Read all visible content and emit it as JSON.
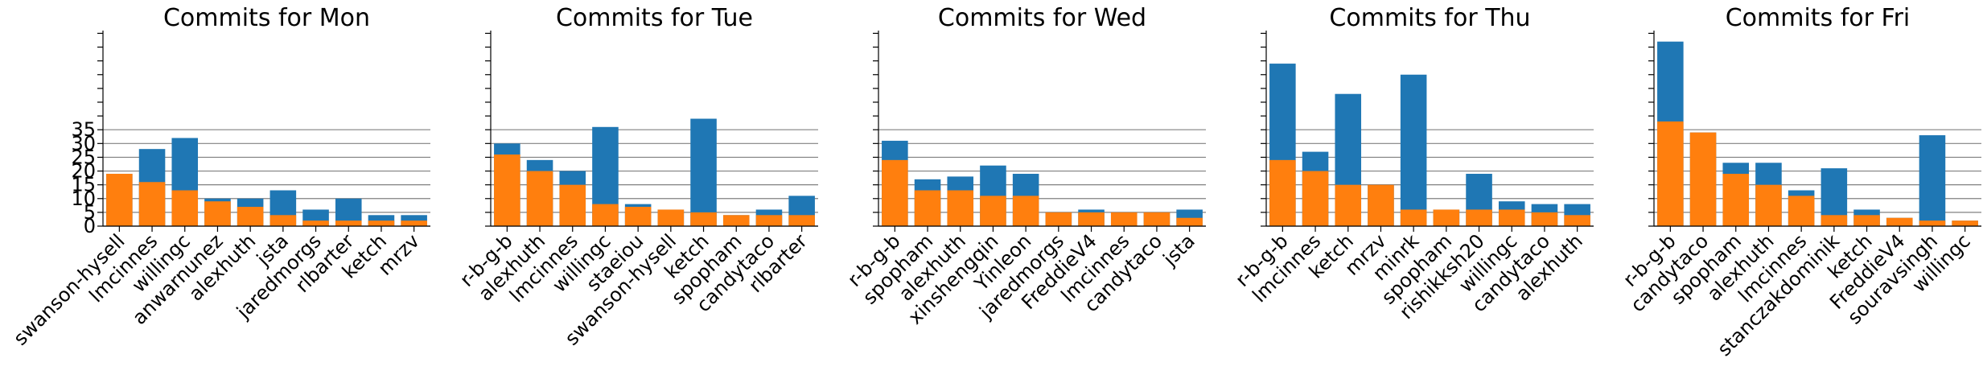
{
  "colors": {
    "total": "#1f77b4",
    "own": "#ff7f0e",
    "grid": "#808080"
  },
  "chart_data": [
    {
      "type": "bar",
      "title": "Commits for Mon",
      "yticks": [
        0,
        5,
        10,
        15,
        20,
        25,
        30,
        35
      ],
      "ylim": [
        0,
        71
      ],
      "grid": "horizontal",
      "categories": [
        "swanson-hysell",
        "lmcinnes",
        "willingc",
        "anwarnunez",
        "alexhuth",
        "jsta",
        "jaredmorgs",
        "rlbarter",
        "ketch",
        "mrzv"
      ],
      "series": [
        {
          "values": [
            19,
            28,
            32,
            10,
            10,
            13,
            6,
            10,
            4,
            4
          ]
        },
        {
          "values": [
            19,
            16,
            13,
            9,
            7,
            4,
            2,
            2,
            2,
            2
          ]
        }
      ]
    },
    {
      "type": "bar",
      "title": "Commits for Tue",
      "yticks": [
        0,
        5,
        10,
        15,
        20,
        25,
        30,
        35
      ],
      "ylim": [
        0,
        71
      ],
      "grid": "horizontal",
      "categories": [
        "r-b-g-b",
        "alexhuth",
        "lmcinnes",
        "willingc",
        "staeiou",
        "swanson-hysell",
        "ketch",
        "spopham",
        "candytaco",
        "rlbarter"
      ],
      "series": [
        {
          "values": [
            30,
            24,
            20,
            36,
            8,
            6,
            39,
            4,
            6,
            11
          ]
        },
        {
          "values": [
            26,
            20,
            15,
            8,
            7,
            6,
            5,
            4,
            4,
            4
          ]
        }
      ]
    },
    {
      "type": "bar",
      "title": "Commits for Wed",
      "yticks": [
        0,
        5,
        10,
        15,
        20,
        25,
        30,
        35
      ],
      "ylim": [
        0,
        71
      ],
      "grid": "horizontal",
      "categories": [
        "r-b-g-b",
        "spopham",
        "alexhuth",
        "xinshengqin",
        "Yinleon",
        "jaredmorgs",
        "FreddieV4",
        "lmcinnes",
        "candytaco",
        "jsta"
      ],
      "series": [
        {
          "values": [
            31,
            17,
            18,
            22,
            19,
            5,
            6,
            5,
            5,
            6
          ]
        },
        {
          "values": [
            24,
            13,
            13,
            11,
            11,
            5,
            5,
            5,
            5,
            3
          ]
        }
      ]
    },
    {
      "type": "bar",
      "title": "Commits for Thu",
      "yticks": [
        0,
        5,
        10,
        15,
        20,
        25,
        30,
        35
      ],
      "ylim": [
        0,
        71
      ],
      "grid": "horizontal",
      "categories": [
        "r-b-g-b",
        "lmcinnes",
        "ketch",
        "mrzv",
        "minrk",
        "spopham",
        "rishikksh20",
        "willingc",
        "candytaco",
        "alexhuth"
      ],
      "series": [
        {
          "values": [
            59,
            27,
            48,
            15,
            55,
            6,
            19,
            9,
            8,
            8
          ]
        },
        {
          "values": [
            24,
            20,
            15,
            15,
            6,
            6,
            6,
            6,
            5,
            4
          ]
        }
      ]
    },
    {
      "type": "bar",
      "title": "Commits for Fri",
      "yticks": [
        0,
        5,
        10,
        15,
        20,
        25,
        30,
        35
      ],
      "ylim": [
        0,
        71
      ],
      "grid": "horizontal",
      "categories": [
        "r-b-g-b",
        "candytaco",
        "spopham",
        "alexhuth",
        "lmcinnes",
        "stanczakdominik",
        "ketch",
        "FreddieV4",
        "souravsingh",
        "willingc"
      ],
      "series": [
        {
          "values": [
            67,
            34,
            23,
            23,
            13,
            21,
            6,
            3,
            33,
            2
          ]
        },
        {
          "values": [
            38,
            34,
            19,
            15,
            11,
            4,
            4,
            3,
            2,
            2
          ]
        }
      ]
    }
  ]
}
